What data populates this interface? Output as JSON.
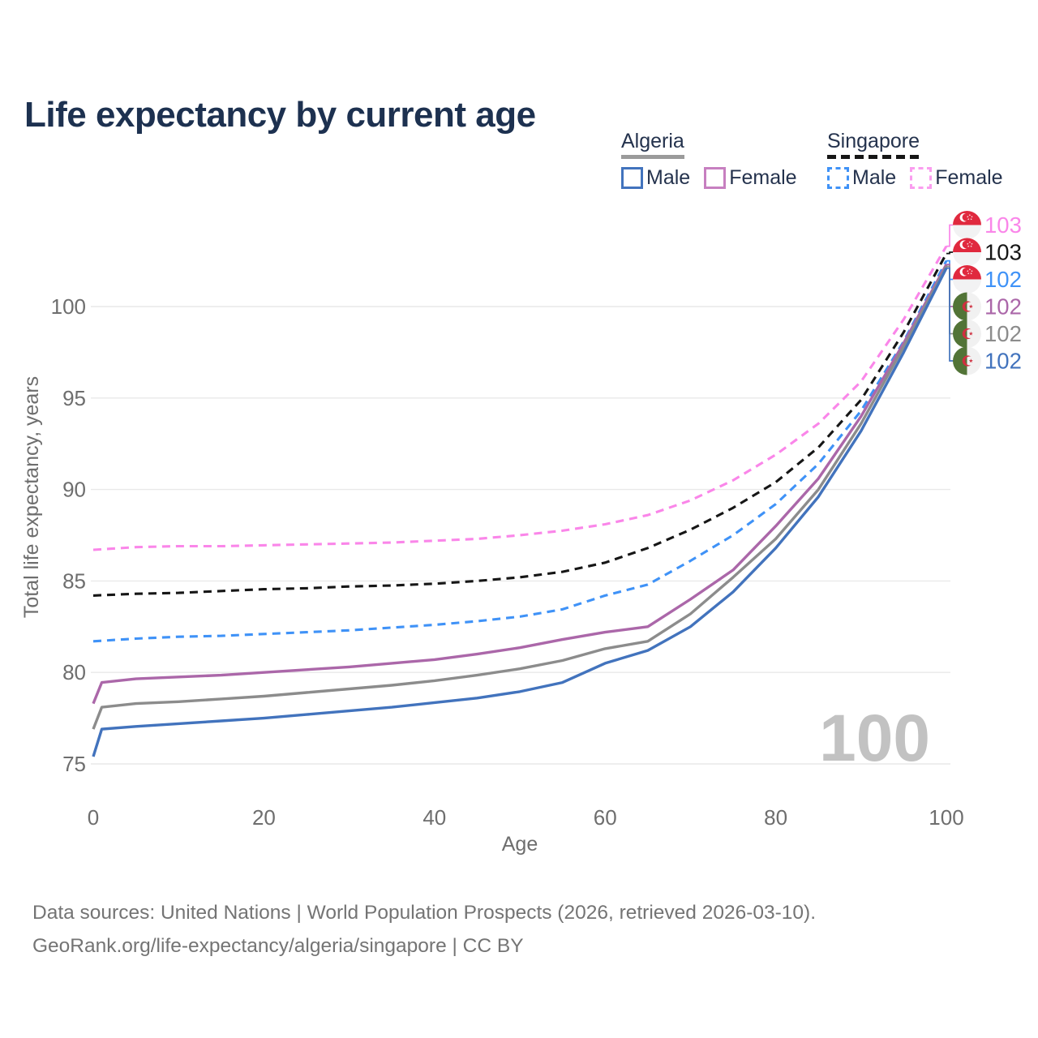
{
  "header": {
    "title": "Life expectancy by current age"
  },
  "legend": {
    "groups": [
      {
        "country": "Algeria",
        "line_style": "solid",
        "underline_color": "#9b9b9b",
        "items": [
          {
            "label": "Male",
            "color": "#4273bd",
            "dash": false
          },
          {
            "label": "Female",
            "color": "#c77fc0",
            "dash": false
          }
        ]
      },
      {
        "country": "Singapore",
        "line_style": "dashed",
        "underline_color": "#161616",
        "items": [
          {
            "label": "Male",
            "color": "#3f92f7",
            "dash": true
          },
          {
            "label": "Female",
            "color": "#fa9def",
            "dash": true
          }
        ]
      }
    ]
  },
  "chart_data": {
    "type": "line",
    "title": "Life expectancy by current age",
    "xlabel": "Age",
    "ylabel": "Total life expectancy, years",
    "xlim": [
      0,
      100
    ],
    "ylim": [
      75,
      100
    ],
    "xticks": [
      0,
      20,
      40,
      60,
      80,
      100
    ],
    "yticks": [
      75,
      80,
      85,
      90,
      95,
      100
    ],
    "grid": "horizontal",
    "watermark": "100",
    "series": [
      {
        "name": "Singapore Female",
        "country": "Singapore",
        "sex": "Female",
        "color": "#fa86e9",
        "dash": "10 7",
        "flag": "sg",
        "end_label": "103",
        "label_slot": 0,
        "points": [
          [
            0,
            86.7
          ],
          [
            5,
            86.85
          ],
          [
            10,
            86.9
          ],
          [
            15,
            86.9
          ],
          [
            20,
            86.95
          ],
          [
            25,
            87.0
          ],
          [
            30,
            87.05
          ],
          [
            35,
            87.1
          ],
          [
            40,
            87.2
          ],
          [
            45,
            87.3
          ],
          [
            50,
            87.5
          ],
          [
            55,
            87.75
          ],
          [
            60,
            88.1
          ],
          [
            65,
            88.6
          ],
          [
            70,
            89.4
          ],
          [
            75,
            90.5
          ],
          [
            80,
            91.9
          ],
          [
            85,
            93.6
          ],
          [
            90,
            95.9
          ],
          [
            95,
            99.3
          ],
          [
            100,
            103.3
          ]
        ]
      },
      {
        "name": "Singapore Total",
        "country": "Singapore",
        "sex": "Both",
        "color": "#161616",
        "dash": "10 7",
        "flag": "sg",
        "end_label": "103",
        "label_slot": 1,
        "points": [
          [
            0,
            84.2
          ],
          [
            5,
            84.3
          ],
          [
            10,
            84.35
          ],
          [
            15,
            84.45
          ],
          [
            20,
            84.55
          ],
          [
            25,
            84.6
          ],
          [
            30,
            84.7
          ],
          [
            35,
            84.75
          ],
          [
            40,
            84.85
          ],
          [
            45,
            85.0
          ],
          [
            50,
            85.2
          ],
          [
            55,
            85.5
          ],
          [
            60,
            86.0
          ],
          [
            65,
            86.8
          ],
          [
            70,
            87.8
          ],
          [
            75,
            89.0
          ],
          [
            80,
            90.4
          ],
          [
            85,
            92.3
          ],
          [
            90,
            94.9
          ],
          [
            95,
            98.6
          ],
          [
            100,
            102.9
          ]
        ]
      },
      {
        "name": "Singapore Male",
        "country": "Singapore",
        "sex": "Male",
        "color": "#3f92f7",
        "dash": "10 7",
        "flag": "sg",
        "end_label": "102",
        "label_slot": 2,
        "points": [
          [
            0,
            81.7
          ],
          [
            5,
            81.85
          ],
          [
            10,
            81.95
          ],
          [
            15,
            82.0
          ],
          [
            20,
            82.1
          ],
          [
            25,
            82.2
          ],
          [
            30,
            82.3
          ],
          [
            35,
            82.45
          ],
          [
            40,
            82.6
          ],
          [
            45,
            82.8
          ],
          [
            50,
            83.05
          ],
          [
            55,
            83.45
          ],
          [
            60,
            84.2
          ],
          [
            65,
            84.8
          ],
          [
            70,
            86.1
          ],
          [
            75,
            87.5
          ],
          [
            80,
            89.2
          ],
          [
            85,
            91.4
          ],
          [
            90,
            94.3
          ],
          [
            95,
            98.1
          ],
          [
            100,
            102.5
          ]
        ]
      },
      {
        "name": "Algeria Female",
        "country": "Algeria",
        "sex": "Female",
        "color": "#ab67a9",
        "dash": "none",
        "flag": "dz",
        "end_label": "102",
        "label_slot": 3,
        "points": [
          [
            0,
            78.3
          ],
          [
            1,
            79.45
          ],
          [
            5,
            79.65
          ],
          [
            10,
            79.75
          ],
          [
            15,
            79.85
          ],
          [
            20,
            80.0
          ],
          [
            25,
            80.15
          ],
          [
            30,
            80.3
          ],
          [
            35,
            80.5
          ],
          [
            40,
            80.7
          ],
          [
            45,
            81.0
          ],
          [
            50,
            81.35
          ],
          [
            55,
            81.8
          ],
          [
            60,
            82.2
          ],
          [
            65,
            82.5
          ],
          [
            70,
            84.0
          ],
          [
            75,
            85.6
          ],
          [
            80,
            88.0
          ],
          [
            85,
            90.6
          ],
          [
            90,
            94.0
          ],
          [
            95,
            98.0
          ],
          [
            100,
            102.3
          ]
        ]
      },
      {
        "name": "Algeria Total",
        "country": "Algeria",
        "sex": "Both",
        "color": "#8c8c8c",
        "dash": "none",
        "flag": "dz",
        "end_label": "102",
        "label_slot": 4,
        "points": [
          [
            0,
            76.9
          ],
          [
            1,
            78.1
          ],
          [
            5,
            78.3
          ],
          [
            10,
            78.4
          ],
          [
            15,
            78.55
          ],
          [
            20,
            78.7
          ],
          [
            25,
            78.9
          ],
          [
            30,
            79.1
          ],
          [
            35,
            79.3
          ],
          [
            40,
            79.55
          ],
          [
            45,
            79.85
          ],
          [
            50,
            80.2
          ],
          [
            55,
            80.65
          ],
          [
            60,
            81.3
          ],
          [
            65,
            81.7
          ],
          [
            70,
            83.2
          ],
          [
            75,
            85.2
          ],
          [
            80,
            87.3
          ],
          [
            85,
            90.0
          ],
          [
            90,
            93.6
          ],
          [
            95,
            97.8
          ],
          [
            100,
            102.2
          ]
        ]
      },
      {
        "name": "Algeria Male",
        "country": "Algeria",
        "sex": "Male",
        "color": "#4273bd",
        "dash": "none",
        "flag": "dz",
        "end_label": "102",
        "label_slot": 5,
        "points": [
          [
            0,
            75.4
          ],
          [
            1,
            76.9
          ],
          [
            5,
            77.05
          ],
          [
            10,
            77.2
          ],
          [
            15,
            77.35
          ],
          [
            20,
            77.5
          ],
          [
            25,
            77.7
          ],
          [
            30,
            77.9
          ],
          [
            35,
            78.1
          ],
          [
            40,
            78.35
          ],
          [
            45,
            78.6
          ],
          [
            50,
            78.95
          ],
          [
            55,
            79.45
          ],
          [
            60,
            80.5
          ],
          [
            65,
            81.2
          ],
          [
            70,
            82.5
          ],
          [
            75,
            84.4
          ],
          [
            80,
            86.8
          ],
          [
            85,
            89.6
          ],
          [
            90,
            93.2
          ],
          [
            95,
            97.5
          ],
          [
            100,
            102.1
          ]
        ]
      }
    ]
  },
  "footer": {
    "line1": "Data sources: United Nations | World Population Prospects (2026, retrieved 2026-03-10).",
    "line2": "GeoRank.org/life-expectancy/algeria/singapore | CC BY"
  }
}
